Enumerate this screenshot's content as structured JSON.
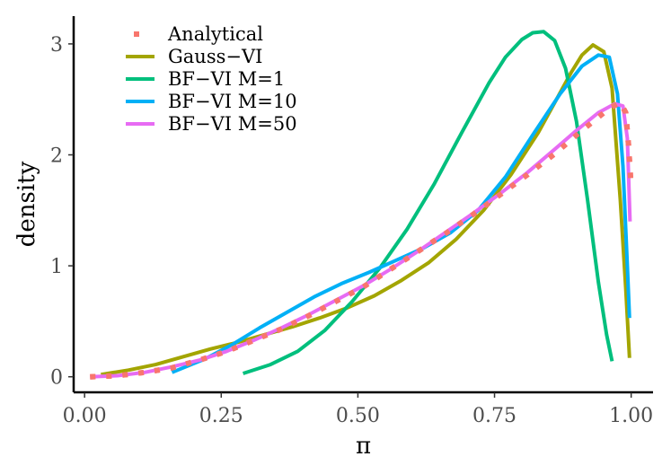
{
  "chart_data": {
    "type": "line",
    "title": "",
    "xlabel": "π",
    "ylabel": "density",
    "xlim": [
      -0.02,
      1.04
    ],
    "ylim": [
      -0.14,
      3.25
    ],
    "x_ticks": [
      0.0,
      0.25,
      0.5,
      0.75,
      1.0
    ],
    "x_tick_labels": [
      "0.00",
      "0.25",
      "0.50",
      "0.75",
      "1.00"
    ],
    "y_ticks": [
      0,
      1,
      2,
      3
    ],
    "y_tick_labels": [
      "0",
      "1",
      "2",
      "3"
    ],
    "grid": false,
    "legend_position": "top-left",
    "series": [
      {
        "name": "Analytical",
        "color": "#F8766D",
        "style": "dotted",
        "x": [
          0.01,
          0.06,
          0.11,
          0.16,
          0.21,
          0.26,
          0.31,
          0.36,
          0.41,
          0.46,
          0.51,
          0.56,
          0.61,
          0.66,
          0.71,
          0.76,
          0.81,
          0.86,
          0.91,
          0.96,
          0.98,
          0.99,
          0.995,
          1.0
        ],
        "y": [
          0.0,
          0.01,
          0.04,
          0.08,
          0.15,
          0.23,
          0.33,
          0.43,
          0.55,
          0.68,
          0.81,
          0.97,
          1.13,
          1.29,
          1.46,
          1.64,
          1.82,
          2.01,
          2.22,
          2.42,
          2.47,
          2.38,
          2.1,
          1.7
        ]
      },
      {
        "name": "Gauss−VI",
        "color": "#A3A500",
        "style": "solid",
        "x": [
          0.03,
          0.08,
          0.13,
          0.18,
          0.23,
          0.28,
          0.33,
          0.38,
          0.43,
          0.48,
          0.53,
          0.58,
          0.63,
          0.68,
          0.73,
          0.78,
          0.83,
          0.86,
          0.89,
          0.91,
          0.93,
          0.95,
          0.965,
          0.98,
          0.99,
          0.997
        ],
        "y": [
          0.02,
          0.06,
          0.11,
          0.18,
          0.25,
          0.31,
          0.38,
          0.45,
          0.53,
          0.62,
          0.73,
          0.87,
          1.03,
          1.24,
          1.5,
          1.82,
          2.2,
          2.47,
          2.74,
          2.9,
          2.99,
          2.93,
          2.6,
          1.6,
          0.8,
          0.17
        ]
      },
      {
        "name": "BF−VI M=1",
        "color": "#00BF7D",
        "style": "solid",
        "x": [
          0.29,
          0.34,
          0.39,
          0.44,
          0.49,
          0.54,
          0.59,
          0.64,
          0.69,
          0.74,
          0.77,
          0.8,
          0.82,
          0.84,
          0.86,
          0.88,
          0.9,
          0.92,
          0.94,
          0.955,
          0.965
        ],
        "y": [
          0.03,
          0.11,
          0.23,
          0.42,
          0.68,
          0.98,
          1.33,
          1.74,
          2.2,
          2.65,
          2.88,
          3.04,
          3.1,
          3.11,
          3.03,
          2.78,
          2.3,
          1.6,
          0.85,
          0.38,
          0.14
        ]
      },
      {
        "name": "BF−VI M=10",
        "color": "#00B0F6",
        "style": "solid",
        "x": [
          0.16,
          0.22,
          0.27,
          0.32,
          0.37,
          0.42,
          0.47,
          0.52,
          0.57,
          0.62,
          0.67,
          0.72,
          0.77,
          0.82,
          0.87,
          0.91,
          0.94,
          0.96,
          0.975,
          0.985,
          0.993,
          0.997
        ],
        "y": [
          0.04,
          0.16,
          0.29,
          0.44,
          0.58,
          0.72,
          0.84,
          0.94,
          1.05,
          1.16,
          1.3,
          1.5,
          1.8,
          2.18,
          2.55,
          2.8,
          2.9,
          2.88,
          2.55,
          1.9,
          1.0,
          0.53
        ]
      },
      {
        "name": "BF−VI M=50",
        "color": "#E76BF3",
        "style": "solid",
        "x": [
          0.01,
          0.06,
          0.11,
          0.16,
          0.21,
          0.26,
          0.31,
          0.36,
          0.41,
          0.46,
          0.51,
          0.56,
          0.61,
          0.66,
          0.71,
          0.76,
          0.81,
          0.86,
          0.9,
          0.94,
          0.97,
          0.985,
          0.993,
          0.998
        ],
        "y": [
          0.0,
          0.01,
          0.04,
          0.09,
          0.15,
          0.23,
          0.33,
          0.44,
          0.56,
          0.69,
          0.82,
          0.97,
          1.13,
          1.3,
          1.47,
          1.65,
          1.84,
          2.05,
          2.22,
          2.38,
          2.46,
          2.44,
          2.15,
          1.4
        ]
      }
    ]
  }
}
